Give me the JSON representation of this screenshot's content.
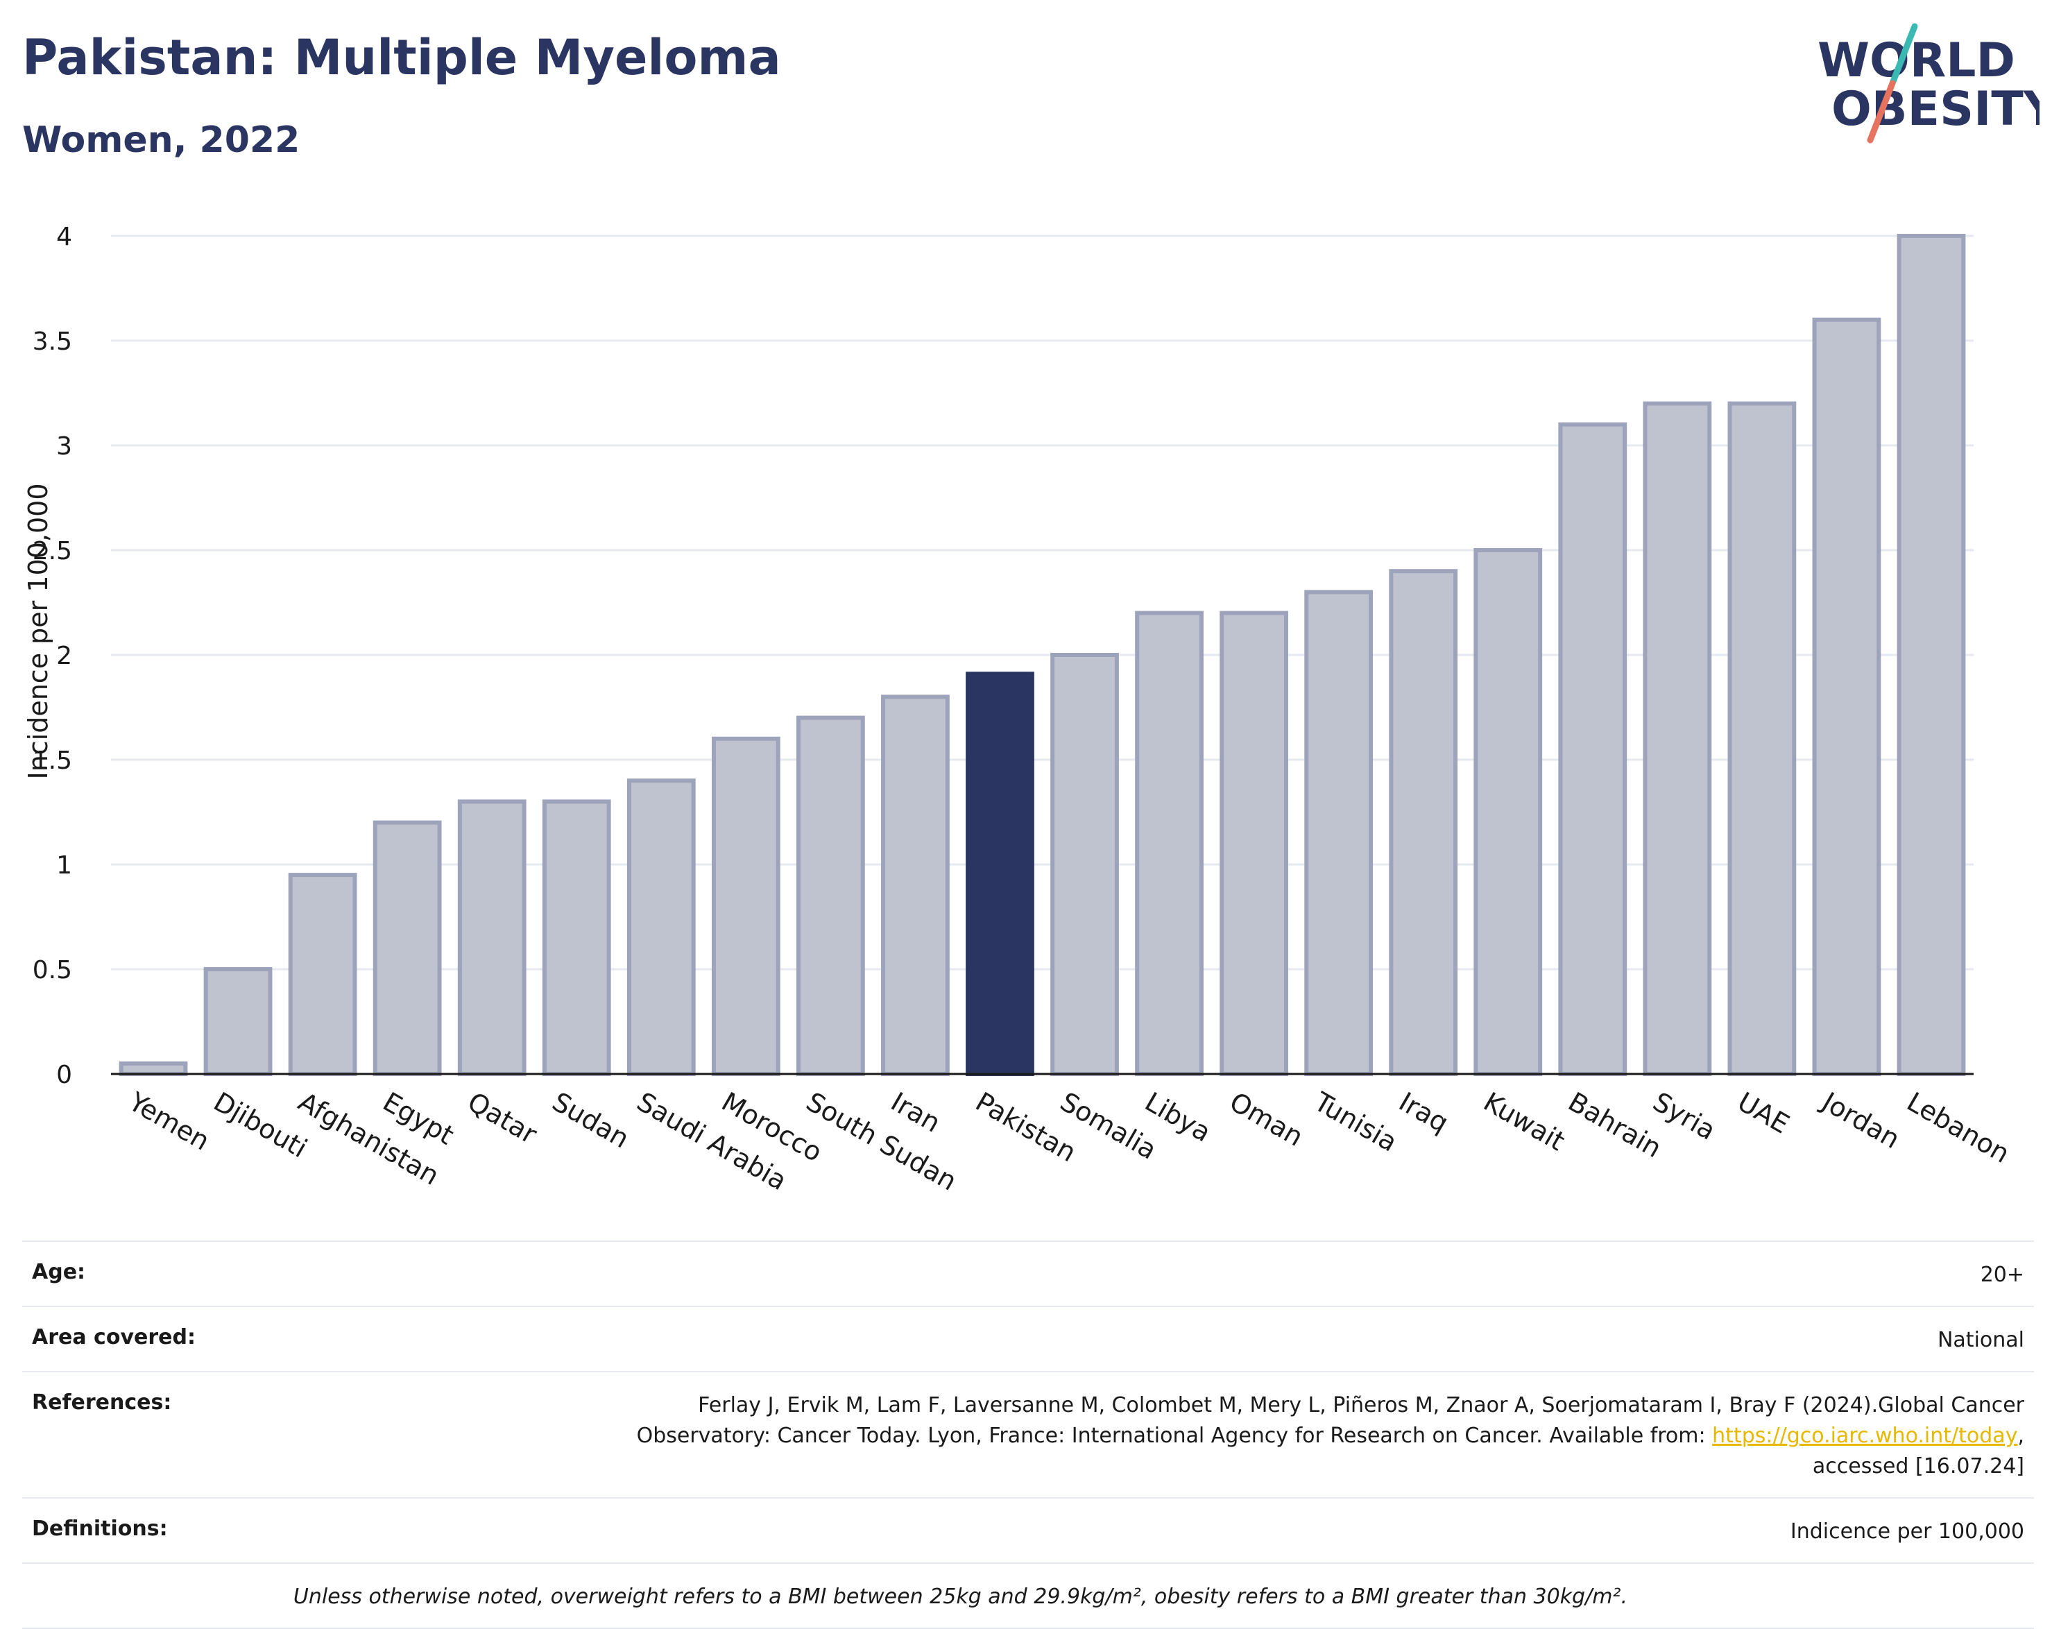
{
  "header": {
    "title": "Pakistan: Multiple Myeloma",
    "subtitle": "Women, 2022"
  },
  "logo": {
    "line1": "WORLD",
    "line2": "OBESITY"
  },
  "colors": {
    "highlight_bar": "#2a3561",
    "other_bar": "#bfc2cf",
    "bar_outline": "#9da3bb",
    "title": "#2a3561",
    "grid": "#e6e9f0",
    "link": "#e6b800"
  },
  "chart_data": {
    "type": "bar",
    "title": "",
    "xlabel": "",
    "ylabel": "Incidence per 100,000",
    "ylim": [
      0,
      4
    ],
    "yticks": [
      0,
      0.5,
      1,
      1.5,
      2,
      2.5,
      3,
      3.5,
      4
    ],
    "ytick_labels": [
      "0",
      "0.5",
      "1",
      "1.5",
      "2",
      "2.5",
      "3",
      "3.5",
      "4"
    ],
    "grid": true,
    "highlight": "Pakistan",
    "categories": [
      "Yemen",
      "Djibouti",
      "Afghanistan",
      "Egypt",
      "Qatar",
      "Sudan",
      "Saudi Arabia",
      "Morocco",
      "South Sudan",
      "Iran",
      "Pakistan",
      "Somalia",
      "Libya",
      "Oman",
      "Tunisia",
      "Iraq",
      "Kuwait",
      "Bahrain",
      "Syria",
      "UAE",
      "Jordan",
      "Lebanon"
    ],
    "values": [
      0.05,
      0.5,
      0.95,
      1.2,
      1.3,
      1.3,
      1.4,
      1.6,
      1.7,
      1.8,
      1.91,
      2.0,
      2.2,
      2.2,
      2.3,
      2.4,
      2.5,
      3.1,
      3.2,
      3.2,
      3.6,
      4.0
    ]
  },
  "meta": {
    "age": {
      "label": "Age:",
      "value": "20+"
    },
    "area": {
      "label": "Area covered:",
      "value": "National"
    },
    "references": {
      "label": "References:",
      "text_before": "Ferlay J, Ervik M, Lam F, Laversanne M, Colombet M, Mery L, Piñeros M, Znaor A, Soerjomataram I, Bray F (2024).Global Cancer Observatory: Cancer Today. Lyon, France: International Agency for Research on Cancer. Available from: ",
      "link": "https://gco.iarc.who.int/today",
      "text_after": ", accessed [16.07.24]"
    },
    "definitions": {
      "label": "Definitions:",
      "value": "Indicence per 100,000"
    },
    "note": "Unless otherwise noted, overweight refers to a BMI between 25kg and 29.9kg/m², obesity refers to a BMI greater than 30kg/m²."
  }
}
